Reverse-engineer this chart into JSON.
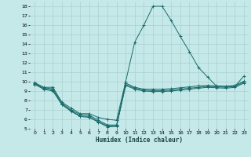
{
  "title": "",
  "xlabel": "Humidex (Indice chaleur)",
  "xlim": [
    -0.5,
    23.5
  ],
  "ylim": [
    5,
    18.5
  ],
  "yticks": [
    5,
    6,
    7,
    8,
    9,
    10,
    11,
    12,
    13,
    14,
    15,
    16,
    17,
    18
  ],
  "xticks": [
    0,
    1,
    2,
    3,
    4,
    5,
    6,
    7,
    8,
    9,
    10,
    11,
    12,
    13,
    14,
    15,
    16,
    17,
    18,
    19,
    20,
    21,
    22,
    23
  ],
  "background_color": "#c5e8e8",
  "grid_color": "#aad0d0",
  "line_color": "#1a6b6b",
  "lines": [
    {
      "x": [
        0,
        1,
        2,
        3,
        4,
        5,
        6,
        7,
        8,
        9,
        10,
        11,
        12,
        13,
        14,
        15,
        16,
        17,
        18,
        19,
        20,
        21,
        22,
        23
      ],
      "y": [
        9.9,
        9.4,
        9.4,
        7.8,
        7.2,
        6.6,
        6.6,
        6.2,
        6.0,
        5.9,
        10.0,
        14.2,
        16.0,
        18.0,
        18.0,
        16.5,
        14.8,
        13.2,
        11.5,
        10.5,
        9.5,
        9.5,
        9.5,
        10.6
      ]
    },
    {
      "x": [
        0,
        1,
        2,
        3,
        4,
        5,
        6,
        7,
        8,
        9,
        10,
        11,
        12,
        13,
        14,
        15,
        16,
        17,
        18,
        19,
        20,
        21,
        22,
        23
      ],
      "y": [
        9.85,
        9.35,
        9.25,
        7.7,
        7.0,
        6.5,
        6.45,
        5.9,
        5.4,
        5.4,
        9.85,
        9.4,
        9.2,
        9.2,
        9.2,
        9.25,
        9.35,
        9.45,
        9.55,
        9.6,
        9.55,
        9.5,
        9.6,
        10.05
      ]
    },
    {
      "x": [
        0,
        1,
        2,
        3,
        4,
        5,
        6,
        7,
        8,
        9,
        10,
        11,
        12,
        13,
        14,
        15,
        16,
        17,
        18,
        19,
        20,
        21,
        22,
        23
      ],
      "y": [
        9.75,
        9.25,
        9.1,
        7.6,
        6.9,
        6.35,
        6.3,
        5.75,
        5.3,
        5.3,
        9.7,
        9.3,
        9.1,
        9.05,
        9.05,
        9.1,
        9.2,
        9.3,
        9.4,
        9.5,
        9.45,
        9.4,
        9.5,
        9.95
      ]
    },
    {
      "x": [
        0,
        1,
        2,
        3,
        4,
        5,
        6,
        7,
        8,
        9,
        10,
        11,
        12,
        13,
        14,
        15,
        16,
        17,
        18,
        19,
        20,
        21,
        22,
        23
      ],
      "y": [
        9.7,
        9.2,
        9.0,
        7.55,
        6.85,
        6.3,
        6.2,
        5.7,
        5.2,
        5.25,
        9.6,
        9.2,
        9.0,
        8.95,
        8.95,
        9.0,
        9.1,
        9.2,
        9.3,
        9.4,
        9.35,
        9.3,
        9.4,
        9.85
      ]
    }
  ]
}
